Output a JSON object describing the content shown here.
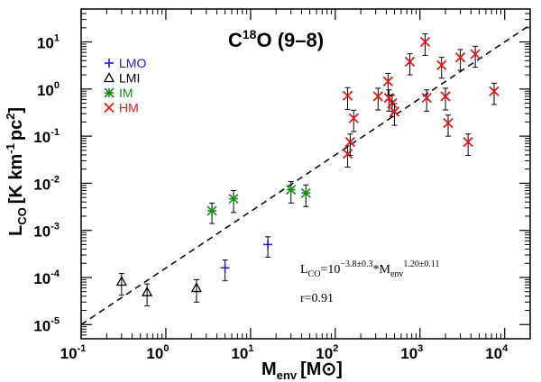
{
  "chart_data": {
    "type": "scatter",
    "title": "C¹⁸O (9–8)",
    "title_main": "C",
    "title_iso": "18",
    "title_rest": "O (9–8)",
    "xlabel": "M",
    "xlabel_sub": "env",
    "xlabel_unit_open": "[M",
    "xlabel_unit_symbol": "⊙",
    "xlabel_unit_close": "]",
    "ylabel": "L",
    "ylabel_sub": "CO",
    "ylabel_unit": "[K km",
    "ylabel_exp1": "-1",
    "ylabel_pc": "pc",
    "ylabel_exp2": "2",
    "ylabel_close": "]",
    "xscale": "log",
    "yscale": "log",
    "xlim": [
      0.1,
      20000
    ],
    "ylim": [
      5e-06,
      50
    ],
    "xticks": [
      {
        "base": "10",
        "exp": "-1"
      },
      {
        "base": "10",
        "exp": "0"
      },
      {
        "base": "10",
        "exp": "1"
      },
      {
        "base": "10",
        "exp": "2"
      },
      {
        "base": "10",
        "exp": "3"
      },
      {
        "base": "10",
        "exp": "4"
      }
    ],
    "yticks": [
      {
        "base": "10",
        "exp": "-5"
      },
      {
        "base": "10",
        "exp": "-4"
      },
      {
        "base": "10",
        "exp": "-3"
      },
      {
        "base": "10",
        "exp": "-2"
      },
      {
        "base": "10",
        "exp": "-1"
      },
      {
        "base": "10",
        "exp": "0"
      },
      {
        "base": "10",
        "exp": "1"
      }
    ],
    "legend_position": "top-left",
    "series": [
      {
        "name": "LMO",
        "marker": "plus",
        "color": "#1a1adb",
        "points": [
          {
            "x": 5.0,
            "y": 0.00016,
            "err": 7.5e-05
          },
          {
            "x": 16.0,
            "y": 0.0005,
            "err": 0.00023
          }
        ]
      },
      {
        "name": "LMI",
        "marker": "triangle",
        "color": "#000000",
        "points": [
          {
            "x": 0.3,
            "y": 8.2e-05,
            "err": 4e-05
          },
          {
            "x": 0.6,
            "y": 4.9e-05,
            "err": 2.4e-05
          },
          {
            "x": 2.3,
            "y": 6e-05,
            "err": 3e-05
          }
        ]
      },
      {
        "name": "IM",
        "marker": "asterisk",
        "color": "#1a8a1a",
        "points": [
          {
            "x": 3.5,
            "y": 0.0026,
            "err": 0.0012
          },
          {
            "x": 6.3,
            "y": 0.0047,
            "err": 0.0023
          },
          {
            "x": 30,
            "y": 0.0073,
            "err": 0.0035
          },
          {
            "x": 45,
            "y": 0.0062,
            "err": 0.003
          }
        ]
      },
      {
        "name": "HM",
        "marker": "x",
        "color": "#e11a1a",
        "points": [
          {
            "x": 140,
            "y": 0.72,
            "err": 0.35
          },
          {
            "x": 140,
            "y": 0.042,
            "err": 0.02
          },
          {
            "x": 150,
            "y": 0.075,
            "err": 0.036
          },
          {
            "x": 165,
            "y": 0.24,
            "err": 0.115
          },
          {
            "x": 320,
            "y": 0.7,
            "err": 0.34
          },
          {
            "x": 420,
            "y": 1.45,
            "err": 0.7
          },
          {
            "x": 430,
            "y": 0.65,
            "err": 0.31
          },
          {
            "x": 470,
            "y": 0.5,
            "err": 0.24
          },
          {
            "x": 500,
            "y": 0.33,
            "err": 0.16
          },
          {
            "x": 760,
            "y": 3.8,
            "err": 1.8
          },
          {
            "x": 1150,
            "y": 10.0,
            "err": 4.8
          },
          {
            "x": 1200,
            "y": 0.65,
            "err": 0.31
          },
          {
            "x": 1800,
            "y": 3.2,
            "err": 1.5
          },
          {
            "x": 2000,
            "y": 0.7,
            "err": 0.34
          },
          {
            "x": 2150,
            "y": 0.19,
            "err": 0.09
          },
          {
            "x": 3000,
            "y": 4.7,
            "err": 2.2
          },
          {
            "x": 3700,
            "y": 0.075,
            "err": 0.036
          },
          {
            "x": 4500,
            "y": 5.5,
            "err": 2.6
          },
          {
            "x": 7500,
            "y": 0.9,
            "err": 0.43
          }
        ]
      }
    ],
    "fit_line": {
      "style": "dashed",
      "x": [
        0.1,
        20000
      ],
      "log_coeff": -3.8,
      "slope": 1.2
    },
    "annotations": {
      "fit_prefix": "L",
      "fit_sub": "CO",
      "fit_eq": "=10",
      "fit_exp": "−3.8±0.3",
      "fit_mult": "*M",
      "fit_sub2": "env",
      "fit_exp2": "1.20±0.11",
      "corr": "r=0.91"
    }
  }
}
